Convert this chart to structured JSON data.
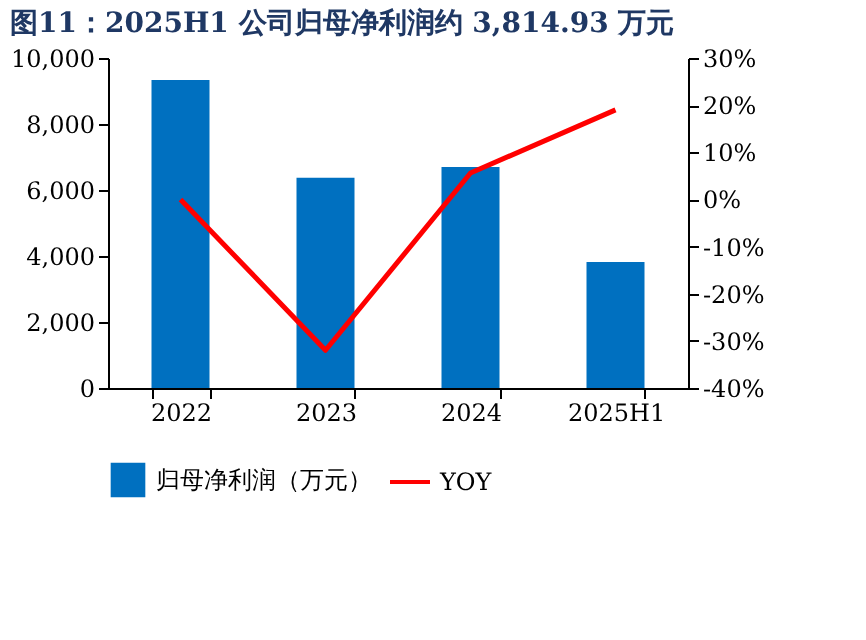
{
  "chart_data": {
    "type": "bar",
    "title": "图11：2025H1 公司归母净利润约 3,814.93 万元",
    "categories": [
      "2022",
      "2023",
      "2024",
      "2025H1"
    ],
    "series": [
      {
        "name": "归母净利润（万元）",
        "color": "#0070c0",
        "values": [
          9330,
          6370,
          6700,
          3815
        ]
      },
      {
        "name": "YOY",
        "type": "line",
        "axis": "y2",
        "color": "#ff0000",
        "values": [
          0,
          -32,
          5.6,
          19
        ]
      }
    ],
    "ylim": [
      0,
      10000
    ],
    "yticks": [
      {
        "value": 0,
        "label": "0"
      },
      {
        "value": 2000,
        "label": "2,000"
      },
      {
        "value": 4000,
        "label": "4,000"
      },
      {
        "value": 6000,
        "label": "6,000"
      },
      {
        "value": 8000,
        "label": "8,000"
      },
      {
        "value": 10000,
        "label": "10,000"
      }
    ],
    "y2lim": [
      -40,
      30
    ],
    "y2ticks": [
      {
        "value": -40,
        "label": "-40%"
      },
      {
        "value": -30,
        "label": "-30%"
      },
      {
        "value": -20,
        "label": "-20%"
      },
      {
        "value": -10,
        "label": "-10%"
      },
      {
        "value": 0,
        "label": "0%"
      },
      {
        "value": 10,
        "label": "10%"
      },
      {
        "value": 20,
        "label": "20%"
      },
      {
        "value": 30,
        "label": "30%"
      }
    ],
    "legend": "bottom",
    "grid": false,
    "marker": "none",
    "line_style": "solid"
  }
}
